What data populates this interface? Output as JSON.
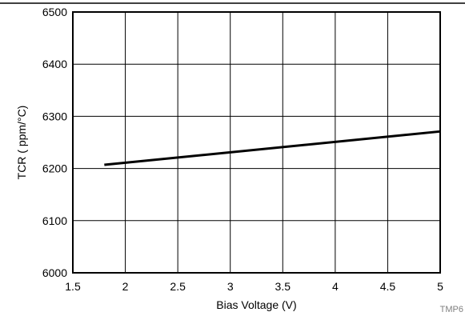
{
  "chart_data": {
    "type": "line",
    "title": "",
    "xlabel": "Bias Voltage (V)",
    "ylabel": "TCR ( ppm/°C)",
    "xlim": [
      1.5,
      5
    ],
    "ylim": [
      6000,
      6500
    ],
    "x_ticks": [
      "1.5",
      "2",
      "2.5",
      "3",
      "3.5",
      "4",
      "4.5",
      "5"
    ],
    "y_ticks": [
      "6000",
      "6100",
      "6200",
      "6300",
      "6400",
      "6500"
    ],
    "grid": true,
    "series": [
      {
        "x": [
          1.8,
          5.0
        ],
        "y": [
          6207,
          6271
        ]
      }
    ],
    "colors": {
      "line": "#000000",
      "grid": "#000000",
      "frame": "#000000"
    }
  },
  "corner_tag": "TMP6"
}
